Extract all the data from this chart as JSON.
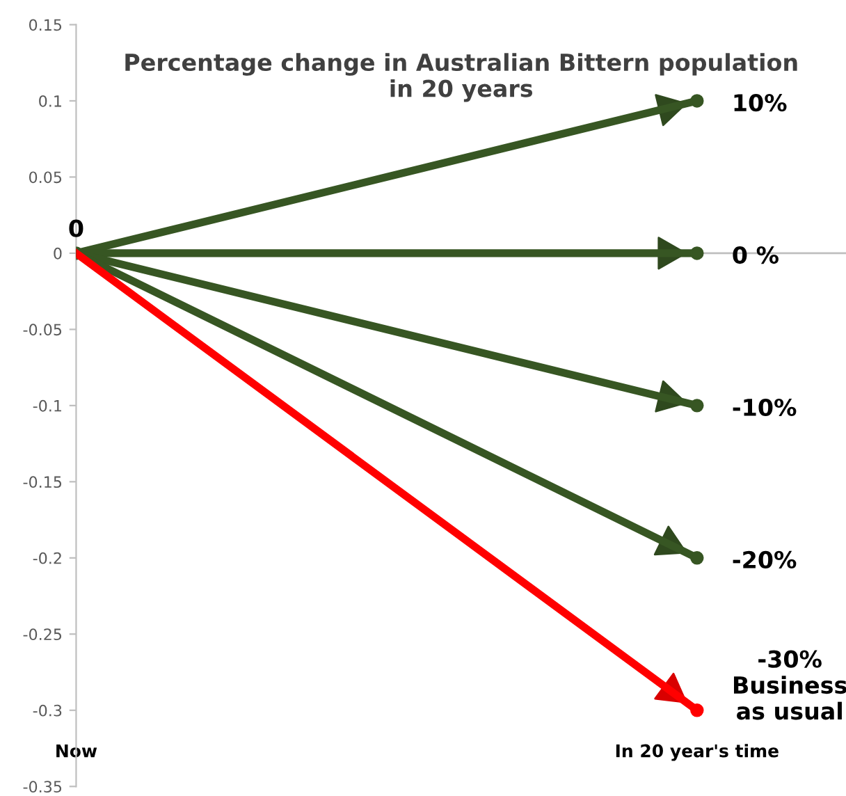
{
  "chart_data": {
    "type": "line",
    "title": "Percentage change in Australian Bittern population\nin 20 years",
    "categories": [
      "Now",
      "In 20 year's time"
    ],
    "series": [
      {
        "color": "#375623",
        "values": [
          0,
          0.1
        ],
        "value_labels": [
          "0",
          "10%"
        ]
      },
      {
        "color": "#375623",
        "values": [
          0,
          0
        ],
        "value_labels": [
          null,
          "0 %"
        ]
      },
      {
        "color": "#375623",
        "values": [
          0,
          -0.1
        ],
        "value_labels": [
          null,
          "-10%"
        ]
      },
      {
        "color": "#375623",
        "values": [
          0,
          -0.2
        ],
        "value_labels": [
          null,
          "-20%"
        ]
      },
      {
        "color": "#ff0000",
        "values": [
          0,
          -0.3
        ],
        "value_labels": [
          null,
          "-30%\nBusiness\nas usual"
        ]
      }
    ],
    "ylim": [
      -0.35,
      0.15
    ],
    "yticks": [
      -0.35,
      -0.3,
      -0.25,
      -0.2,
      -0.15,
      -0.1,
      -0.05,
      0,
      0.05,
      0.1,
      0.15
    ],
    "ref_lines": [
      {
        "axis": "y",
        "value": 0,
        "color": "#bfbfbf"
      }
    ],
    "grid": false,
    "legend": false,
    "marker": "circle",
    "line_style": "solid"
  }
}
